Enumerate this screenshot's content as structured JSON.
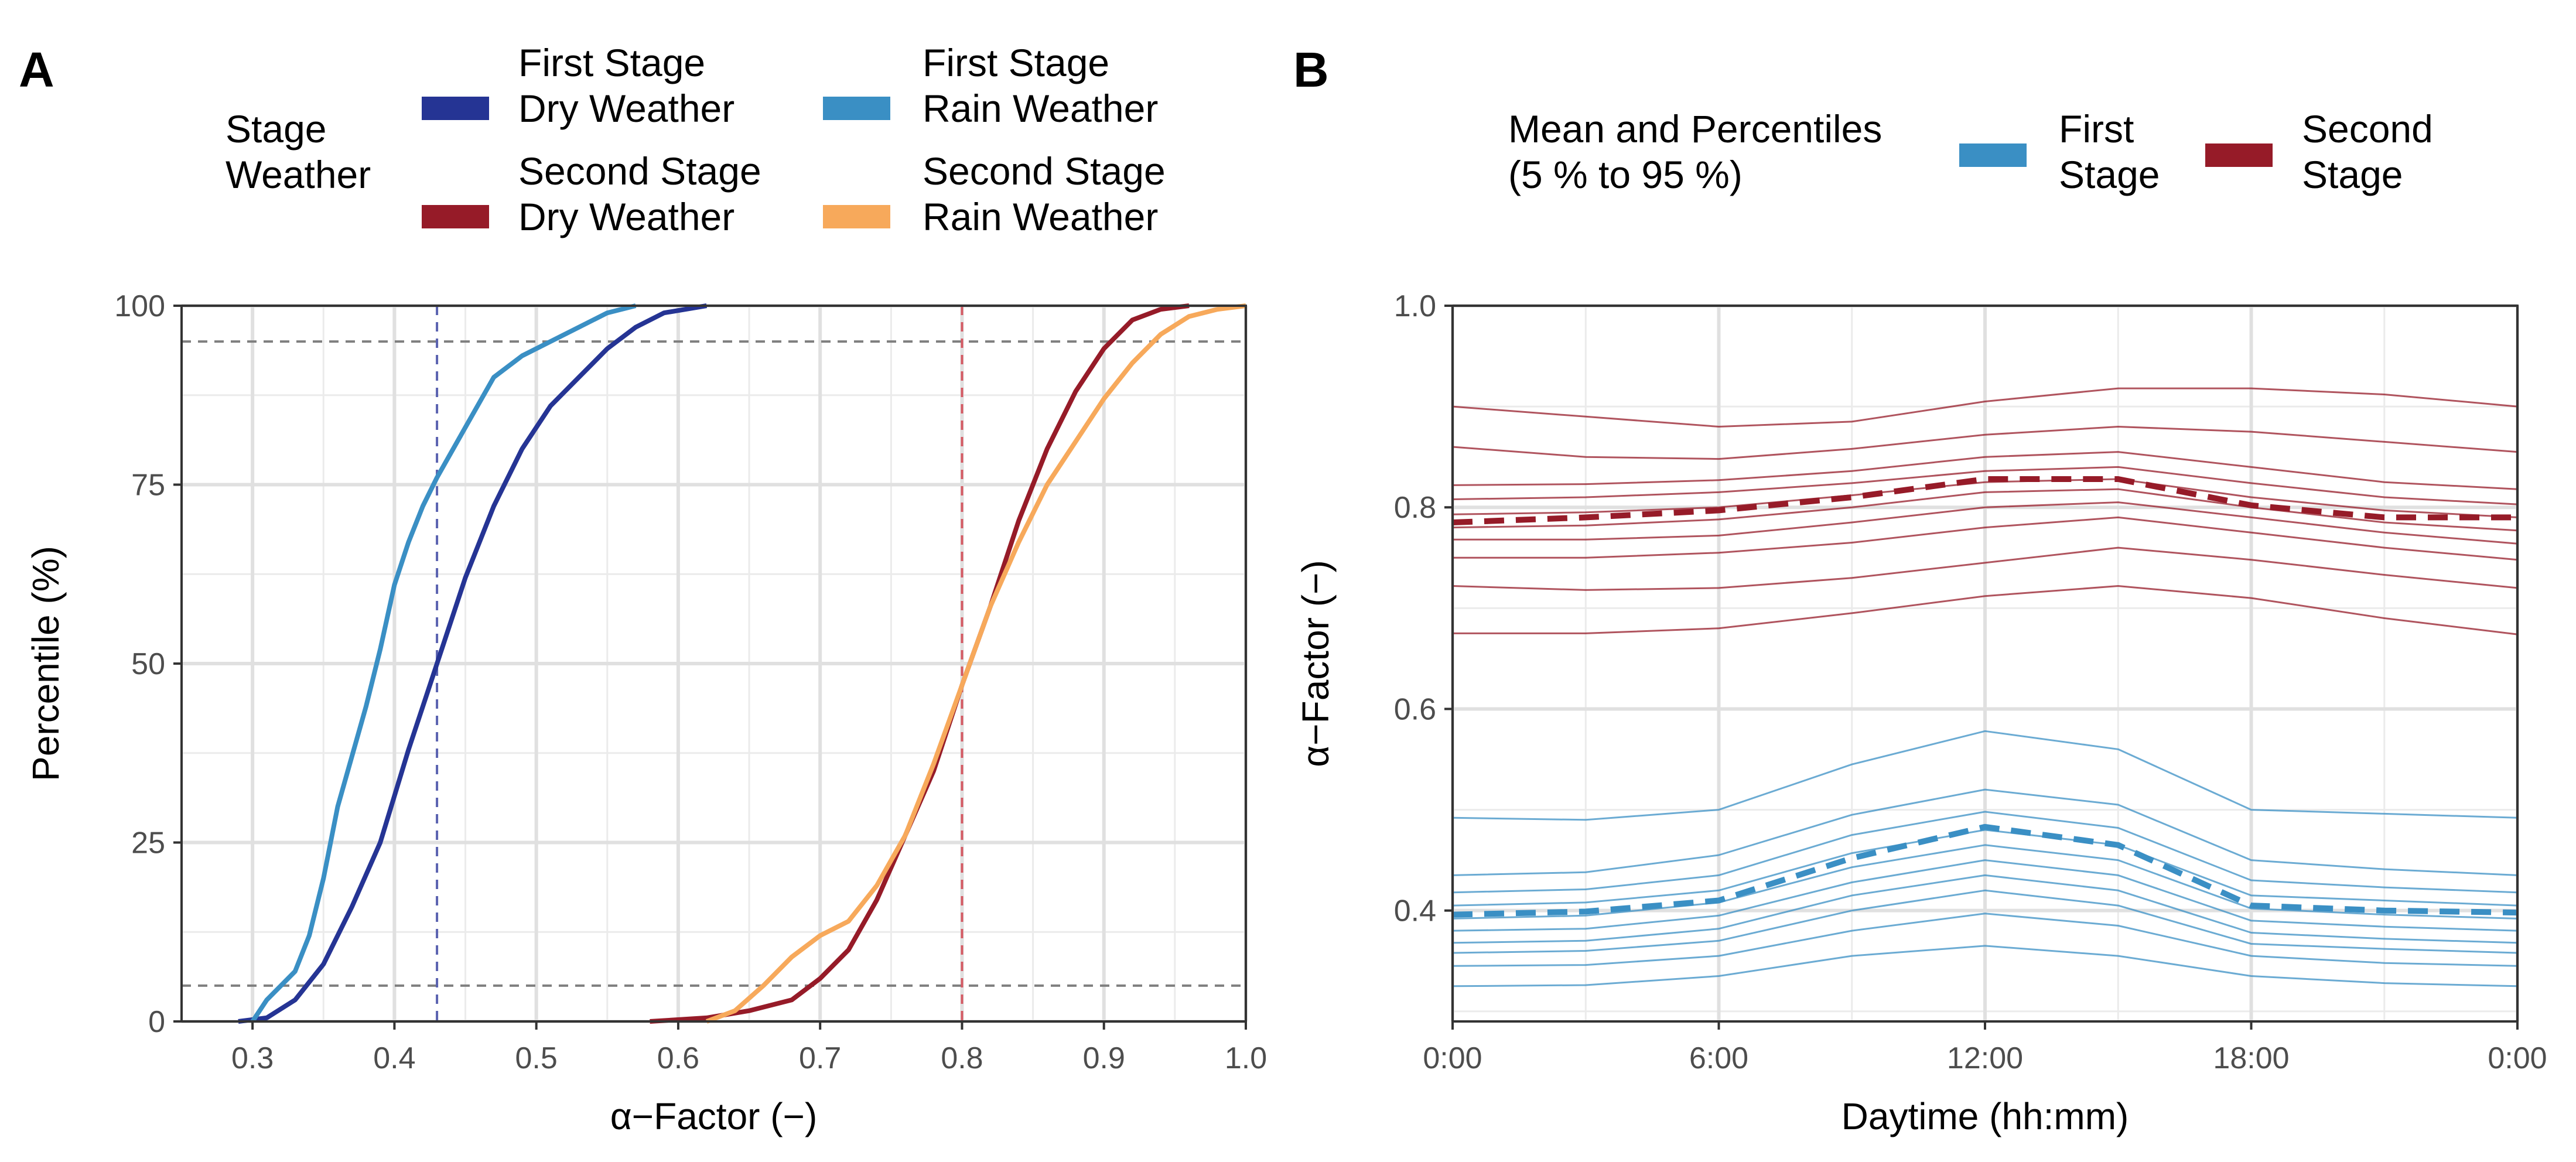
{
  "chart_data": [
    {
      "panel_label": "A",
      "type": "line",
      "title": "",
      "xlabel": "α−Factor (−)",
      "ylabel": "Percentile (%)",
      "xlim": [
        0.25,
        1.0
      ],
      "ylim": [
        0,
        100
      ],
      "xticks": [
        0.3,
        0.4,
        0.5,
        0.6,
        0.7,
        0.8,
        0.9,
        1.0
      ],
      "xtick_labels": [
        "0.3",
        "0.4",
        "0.5",
        "0.6",
        "0.7",
        "0.8",
        "0.9",
        "1.0"
      ],
      "yticks": [
        0,
        25,
        50,
        75,
        100
      ],
      "ytick_labels": [
        "0",
        "25",
        "50",
        "75",
        "100"
      ],
      "grid": true,
      "legend": {
        "title": "Stage\nWeather",
        "placement": "top",
        "entries": [
          {
            "label": "First Stage\nDry Weather",
            "color": "#253494"
          },
          {
            "label": "First Stage\nRain Weather",
            "color": "#3a8fc4"
          },
          {
            "label": "Second Stage\nDry Weather",
            "color": "#961b28"
          },
          {
            "label": "Second Stage\nRain Weather",
            "color": "#f7a95b"
          }
        ]
      },
      "reference_lines": [
        {
          "orientation": "horizontal",
          "value": 5,
          "color": "#7f7f7f",
          "style": "dashed"
        },
        {
          "orientation": "horizontal",
          "value": 95,
          "color": "#7f7f7f",
          "style": "dashed"
        },
        {
          "orientation": "vertical",
          "value": 0.43,
          "color": "#5a62b0",
          "style": "dashed"
        },
        {
          "orientation": "vertical",
          "value": 0.8,
          "color": "#d45a64",
          "style": "dashed"
        }
      ],
      "series": [
        {
          "name": "First Stage Dry Weather",
          "color": "#253494",
          "x": [
            0.29,
            0.31,
            0.33,
            0.35,
            0.37,
            0.39,
            0.41,
            0.43,
            0.45,
            0.47,
            0.49,
            0.51,
            0.53,
            0.55,
            0.57,
            0.59,
            0.62
          ],
          "y": [
            0,
            0.5,
            3,
            8,
            16,
            25,
            38,
            50,
            62,
            72,
            80,
            86,
            90,
            94,
            97,
            99,
            100
          ]
        },
        {
          "name": "First Stage Rain Weather",
          "color": "#3a8fc4",
          "x": [
            0.3,
            0.31,
            0.32,
            0.33,
            0.34,
            0.35,
            0.36,
            0.37,
            0.38,
            0.39,
            0.4,
            0.41,
            0.42,
            0.43,
            0.45,
            0.47,
            0.49,
            0.51,
            0.53,
            0.55,
            0.57
          ],
          "y": [
            0,
            3,
            5,
            7,
            12,
            20,
            30,
            37,
            44,
            52,
            61,
            67,
            72,
            76,
            83,
            90,
            93,
            95,
            97,
            99,
            100
          ]
        },
        {
          "name": "Second Stage Dry Weather",
          "color": "#961b28",
          "x": [
            0.58,
            0.62,
            0.65,
            0.68,
            0.7,
            0.72,
            0.74,
            0.76,
            0.78,
            0.8,
            0.82,
            0.84,
            0.86,
            0.88,
            0.9,
            0.92,
            0.94,
            0.96
          ],
          "y": [
            0,
            0.5,
            1.5,
            3,
            6,
            10,
            17,
            26,
            35,
            47,
            58,
            70,
            80,
            88,
            94,
            98,
            99.5,
            100
          ]
        },
        {
          "name": "Second Stage Rain Weather",
          "color": "#f7a95b",
          "x": [
            0.62,
            0.64,
            0.66,
            0.68,
            0.7,
            0.72,
            0.74,
            0.76,
            0.78,
            0.8,
            0.82,
            0.84,
            0.86,
            0.88,
            0.9,
            0.92,
            0.94,
            0.96,
            0.98,
            1.0
          ],
          "y": [
            0,
            1.5,
            5,
            9,
            12,
            14,
            19,
            26,
            36,
            47,
            58,
            67,
            75,
            81,
            87,
            92,
            96,
            98.5,
            99.5,
            100
          ]
        }
      ]
    },
    {
      "panel_label": "B",
      "type": "line",
      "title": "",
      "xlabel": "Daytime (hh:mm)",
      "ylabel": "α−Factor (−)",
      "xlim": [
        0,
        24
      ],
      "ylim": [
        0.29,
        1.0
      ],
      "xticks": [
        0,
        6,
        12,
        18,
        24
      ],
      "xtick_labels": [
        "0:00",
        "6:00",
        "12:00",
        "18:00",
        "0:00"
      ],
      "yticks": [
        0.4,
        0.6,
        0.8,
        1.0
      ],
      "ytick_labels": [
        "0.4",
        "0.6",
        "0.8",
        "1.0"
      ],
      "grid": true,
      "legend": {
        "title": "Mean and Percentiles\n(5 % to 95 %)",
        "placement": "top",
        "entries": [
          {
            "label": "First\nStage",
            "color": "#3a8fc4"
          },
          {
            "label": "Second\nStage",
            "color": "#961b28"
          }
        ]
      },
      "x": [
        0,
        3,
        6,
        9,
        12,
        15,
        18,
        21,
        24
      ],
      "series": [
        {
          "name": "Second Stage Mean",
          "stage": "Second Stage",
          "color": "#961b28",
          "style": "dashed",
          "values": [
            0.785,
            0.79,
            0.797,
            0.81,
            0.828,
            0.828,
            0.802,
            0.79,
            0.79
          ]
        },
        {
          "name": "Second Stage P5",
          "stage": "Second Stage",
          "color": "#961b28",
          "values": [
            0.675,
            0.675,
            0.68,
            0.695,
            0.712,
            0.722,
            0.71,
            0.69,
            0.674
          ]
        },
        {
          "name": "Second Stage P15",
          "stage": "Second Stage",
          "color": "#961b28",
          "values": [
            0.722,
            0.718,
            0.72,
            0.73,
            0.745,
            0.76,
            0.748,
            0.733,
            0.72
          ]
        },
        {
          "name": "Second Stage P25",
          "stage": "Second Stage",
          "color": "#961b28",
          "values": [
            0.75,
            0.75,
            0.755,
            0.765,
            0.78,
            0.79,
            0.775,
            0.76,
            0.748
          ]
        },
        {
          "name": "Second Stage P35",
          "stage": "Second Stage",
          "color": "#961b28",
          "values": [
            0.768,
            0.768,
            0.772,
            0.785,
            0.8,
            0.805,
            0.79,
            0.775,
            0.764
          ]
        },
        {
          "name": "Second Stage P45",
          "stage": "Second Stage",
          "color": "#961b28",
          "values": [
            0.78,
            0.782,
            0.788,
            0.8,
            0.815,
            0.818,
            0.8,
            0.785,
            0.777
          ]
        },
        {
          "name": "Second Stage P55",
          "stage": "Second Stage",
          "color": "#961b28",
          "values": [
            0.793,
            0.795,
            0.8,
            0.812,
            0.825,
            0.828,
            0.81,
            0.797,
            0.79
          ]
        },
        {
          "name": "Second Stage P65",
          "stage": "Second Stage",
          "color": "#961b28",
          "values": [
            0.808,
            0.81,
            0.815,
            0.824,
            0.836,
            0.84,
            0.824,
            0.81,
            0.803
          ]
        },
        {
          "name": "Second Stage P75",
          "stage": "Second Stage",
          "color": "#961b28",
          "values": [
            0.822,
            0.823,
            0.827,
            0.836,
            0.85,
            0.855,
            0.84,
            0.825,
            0.818
          ]
        },
        {
          "name": "Second Stage P85",
          "stage": "Second Stage",
          "color": "#961b28",
          "values": [
            0.86,
            0.85,
            0.848,
            0.858,
            0.872,
            0.88,
            0.875,
            0.865,
            0.855
          ]
        },
        {
          "name": "Second Stage P95",
          "stage": "Second Stage",
          "color": "#961b28",
          "values": [
            0.9,
            0.89,
            0.88,
            0.885,
            0.905,
            0.918,
            0.918,
            0.912,
            0.9
          ]
        },
        {
          "name": "First Stage Mean",
          "stage": "First Stage",
          "color": "#3a8fc4",
          "style": "dashed",
          "values": [
            0.396,
            0.399,
            0.41,
            0.452,
            0.483,
            0.465,
            0.405,
            0.4,
            0.398
          ]
        },
        {
          "name": "First Stage P5",
          "stage": "First Stage",
          "color": "#3a8fc4",
          "values": [
            0.325,
            0.326,
            0.335,
            0.355,
            0.365,
            0.355,
            0.335,
            0.328,
            0.325
          ]
        },
        {
          "name": "First Stage P15",
          "stage": "First Stage",
          "color": "#3a8fc4",
          "values": [
            0.345,
            0.346,
            0.355,
            0.38,
            0.397,
            0.385,
            0.355,
            0.348,
            0.345
          ]
        },
        {
          "name": "First Stage P25",
          "stage": "First Stage",
          "color": "#3a8fc4",
          "values": [
            0.358,
            0.36,
            0.37,
            0.4,
            0.42,
            0.405,
            0.367,
            0.362,
            0.358
          ]
        },
        {
          "name": "First Stage P35",
          "stage": "First Stage",
          "color": "#3a8fc4",
          "values": [
            0.368,
            0.37,
            0.382,
            0.415,
            0.435,
            0.42,
            0.378,
            0.372,
            0.368
          ]
        },
        {
          "name": "First Stage P45",
          "stage": "First Stage",
          "color": "#3a8fc4",
          "values": [
            0.38,
            0.382,
            0.395,
            0.428,
            0.45,
            0.435,
            0.39,
            0.384,
            0.38
          ]
        },
        {
          "name": "First Stage P55",
          "stage": "First Stage",
          "color": "#3a8fc4",
          "values": [
            0.392,
            0.395,
            0.408,
            0.443,
            0.465,
            0.45,
            0.402,
            0.396,
            0.392
          ]
        },
        {
          "name": "First Stage P65",
          "stage": "First Stage",
          "color": "#3a8fc4",
          "values": [
            0.405,
            0.408,
            0.42,
            0.457,
            0.48,
            0.465,
            0.415,
            0.41,
            0.405
          ]
        },
        {
          "name": "First Stage P75",
          "stage": "First Stage",
          "color": "#3a8fc4",
          "values": [
            0.418,
            0.421,
            0.435,
            0.475,
            0.498,
            0.482,
            0.43,
            0.423,
            0.418
          ]
        },
        {
          "name": "First Stage P85",
          "stage": "First Stage",
          "color": "#3a8fc4",
          "values": [
            0.435,
            0.438,
            0.455,
            0.495,
            0.52,
            0.505,
            0.45,
            0.441,
            0.435
          ]
        },
        {
          "name": "First Stage P95",
          "stage": "First Stage",
          "color": "#3a8fc4",
          "values": [
            0.492,
            0.49,
            0.5,
            0.545,
            0.578,
            0.56,
            0.5,
            0.496,
            0.492
          ]
        }
      ]
    }
  ]
}
